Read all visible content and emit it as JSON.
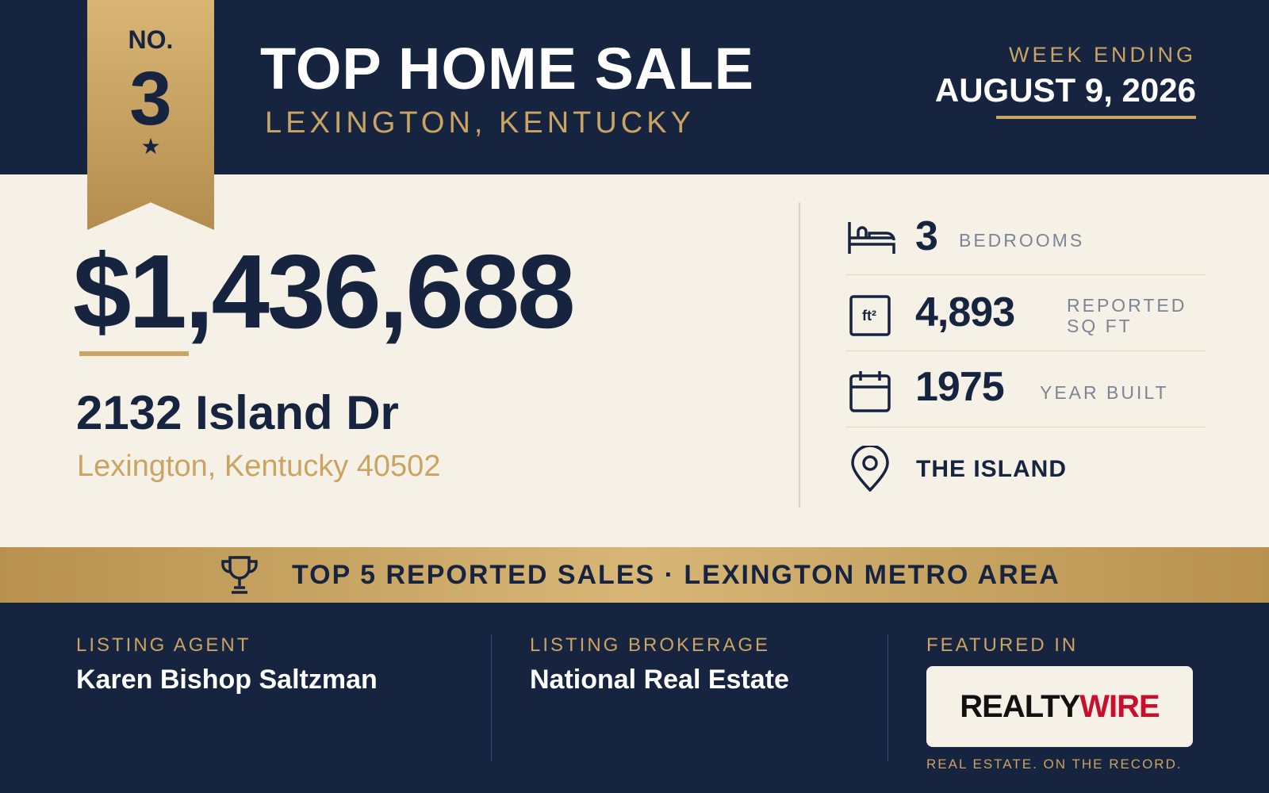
{
  "ribbon": {
    "label": "NO.",
    "number": "3"
  },
  "header": {
    "title": "TOP HOME SALE",
    "location": "LEXINGTON, KENTUCKY",
    "week_label": "WEEK ENDING",
    "week_date": "AUGUST 9, 2026"
  },
  "sale": {
    "price": "$1,436,688",
    "street": "2132 Island Dr",
    "city": "Lexington, Kentucky 40502"
  },
  "stats": [
    {
      "value": "3",
      "label": "BEDROOMS"
    },
    {
      "value": "4,893",
      "label": "REPORTED SQ FT"
    },
    {
      "value": "1975",
      "label": "YEAR BUILT"
    }
  ],
  "neighborhood": "THE ISLAND",
  "banner": "TOP 5 REPORTED SALES · LEXINGTON METRO AREA",
  "footer": {
    "agent_label": "LISTING AGENT",
    "agent": "Karen Bishop Saltzman",
    "brokerage_label": "LISTING BROKERAGE",
    "brokerage": "National Real Estate",
    "featured_label": "FEATURED IN",
    "logo_a": "REALTY",
    "logo_b": "WIRE",
    "tagline": "REAL ESTATE. ON THE RECORD."
  }
}
